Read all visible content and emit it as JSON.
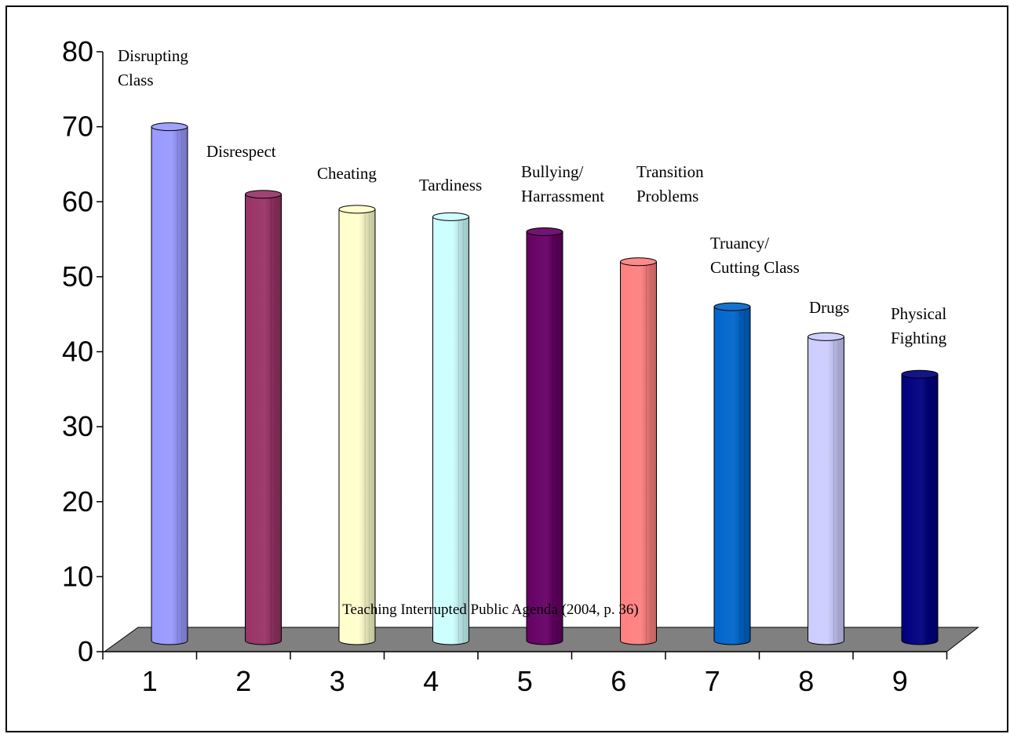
{
  "chart_data": {
    "type": "bar",
    "categories": [
      "1",
      "2",
      "3",
      "4",
      "5",
      "6",
      "7",
      "8",
      "9"
    ],
    "bar_labels": [
      [
        "Disrupting",
        "Class"
      ],
      [
        "Disrespect"
      ],
      [
        "Cheating"
      ],
      [
        "Tardiness"
      ],
      [
        "Bullying/",
        "Harrassment"
      ],
      [
        "Transition",
        "Problems"
      ],
      [
        "Truancy/",
        "Cutting Class"
      ],
      [
        "Drugs"
      ],
      [
        "Physical",
        "Fighting"
      ]
    ],
    "values": [
      70,
      61,
      59,
      58,
      56,
      52,
      46,
      42,
      37
    ],
    "colors": [
      "#9999ff",
      "#993366",
      "#ffffcc",
      "#ccffff",
      "#660066",
      "#ff8080",
      "#0066cc",
      "#ccccff",
      "#000080"
    ],
    "ylim": [
      0,
      80
    ],
    "yticks": [
      0,
      10,
      20,
      30,
      40,
      50,
      60,
      70,
      80
    ],
    "xlabel": "",
    "ylabel": "",
    "grid": false,
    "floor_color": "#808080",
    "source_note": "Teaching Interrupted Public Agenda (2004, p. 36)"
  }
}
